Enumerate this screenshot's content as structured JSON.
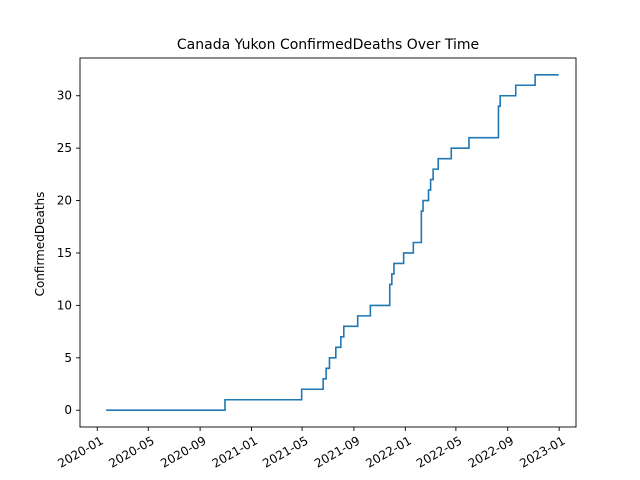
{
  "chart_data": {
    "type": "line",
    "title": "Canada Yukon ConfirmedDeaths Over Time",
    "xlabel": "",
    "ylabel": "ConfirmedDeaths",
    "grid": false,
    "legend": "none",
    "line_color": "#1f77b4",
    "x_ticks": [
      "2020-01",
      "2020-05",
      "2020-09",
      "2021-01",
      "2021-05",
      "2021-09",
      "2022-01",
      "2022-05",
      "2022-09",
      "2023-01"
    ],
    "y_ticks": [
      0,
      5,
      10,
      15,
      20,
      25,
      30
    ],
    "xlim": [
      "2019-11-21",
      "2023-02-10"
    ],
    "ylim": [
      -1.6,
      33.6
    ],
    "series": [
      {
        "step": "post",
        "points": [
          [
            "2020-01-22",
            0
          ],
          [
            "2020-10-30",
            1
          ],
          [
            "2021-04-30",
            2
          ],
          [
            "2021-06-20",
            3
          ],
          [
            "2021-06-27",
            4
          ],
          [
            "2021-07-05",
            5
          ],
          [
            "2021-07-20",
            6
          ],
          [
            "2021-08-01",
            7
          ],
          [
            "2021-08-08",
            8
          ],
          [
            "2021-09-10",
            9
          ],
          [
            "2021-10-10",
            10
          ],
          [
            "2021-11-25",
            12
          ],
          [
            "2021-11-30",
            13
          ],
          [
            "2021-12-05",
            14
          ],
          [
            "2021-12-28",
            15
          ],
          [
            "2022-01-20",
            16
          ],
          [
            "2022-02-08",
            19
          ],
          [
            "2022-02-12",
            20
          ],
          [
            "2022-02-25",
            21
          ],
          [
            "2022-03-02",
            22
          ],
          [
            "2022-03-08",
            23
          ],
          [
            "2022-03-20",
            24
          ],
          [
            "2022-04-20",
            25
          ],
          [
            "2022-06-01",
            26
          ],
          [
            "2022-08-10",
            29
          ],
          [
            "2022-08-14",
            30
          ],
          [
            "2022-09-20",
            31
          ],
          [
            "2022-11-05",
            32
          ],
          [
            "2022-12-31",
            32
          ]
        ]
      }
    ]
  }
}
